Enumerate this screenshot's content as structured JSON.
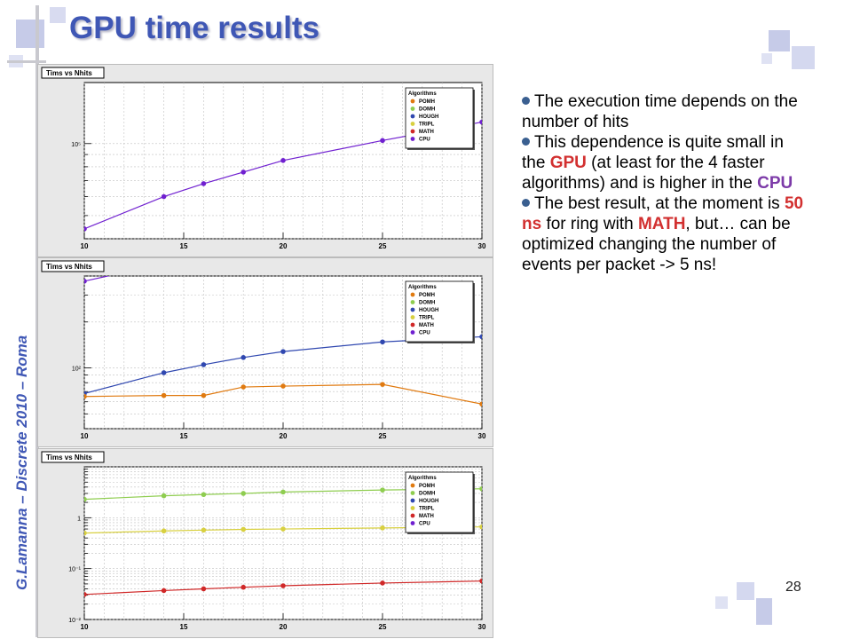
{
  "slide": {
    "title": "GPU time results",
    "side_text": "G.Lamanna – Discrete 2010 – Roma",
    "page_number": "28",
    "accent_color": "#3f57b5"
  },
  "bullets": [
    [
      {
        "t": "The execution time depends on the number of hits",
        "c": ""
      }
    ],
    [
      {
        "t": "This dependence is quite small in the ",
        "c": ""
      },
      {
        "t": "GPU",
        "c": "red"
      },
      {
        "t": " (at least for the 4 faster algorithms) and is higher in the ",
        "c": ""
      },
      {
        "t": "CPU",
        "c": "purple"
      }
    ],
    [
      {
        "t": "The best result, at the moment is ",
        "c": ""
      },
      {
        "t": "50 ns",
        "c": "red"
      },
      {
        "t": " for ring with ",
        "c": ""
      },
      {
        "t": "MATH",
        "c": "red"
      },
      {
        "t": ", but… can be optimized changing the number of events per packet -> 5 ns!",
        "c": ""
      }
    ]
  ],
  "legend": {
    "header": "Algorithms",
    "items": [
      {
        "name": "POMH",
        "color": "#e07a10"
      },
      {
        "name": "DOMH",
        "color": "#8fcd50"
      },
      {
        "name": "HOUGH",
        "color": "#3048b0"
      },
      {
        "name": "TRIPL",
        "color": "#d8d040"
      },
      {
        "name": "MATH",
        "color": "#d02828"
      },
      {
        "name": "CPU",
        "color": "#7020d0"
      }
    ]
  },
  "chart_data": [
    {
      "type": "line",
      "title": "Tims vs Nhits",
      "x_ticks": [
        10,
        15,
        20,
        25,
        30
      ],
      "xlim": [
        10,
        30
      ],
      "y_scale": "log",
      "y_tick_labels": [
        "10⁵"
      ],
      "ylim": [
        40000,
        180000
      ],
      "grid": true,
      "legend_position": "top-right",
      "series": [
        {
          "name": "CPU",
          "color": "#7020d0",
          "x": [
            10,
            14,
            16,
            18,
            20,
            25,
            30
          ],
          "y": [
            44000,
            60000,
            68000,
            76000,
            85000,
            103000,
            123000
          ]
        }
      ]
    },
    {
      "type": "line",
      "title": "Tims vs Nhits",
      "x_ticks": [
        10,
        15,
        20,
        25,
        30
      ],
      "xlim": [
        10,
        30
      ],
      "y_scale": "log",
      "y_tick_labels": [
        "10²"
      ],
      "ylim": [
        40,
        400
      ],
      "grid": true,
      "legend_position": "top-right",
      "series": [
        {
          "name": "CPU",
          "color": "#7020d0",
          "x": [
            10
          ],
          "y": [
            370
          ]
        },
        {
          "name": "HOUGH",
          "color": "#3048b0",
          "x": [
            10,
            14,
            16,
            18,
            20,
            25,
            30
          ],
          "y": [
            68,
            93,
            105,
            117,
            128,
            148,
            160
          ]
        },
        {
          "name": "POMH",
          "color": "#e07a10",
          "x": [
            10,
            14,
            16,
            18,
            20,
            25,
            30
          ],
          "y": [
            65,
            66,
            66,
            75,
            76,
            78,
            58
          ]
        }
      ]
    },
    {
      "type": "line",
      "title": "Tims vs Nhits",
      "x_ticks": [
        10,
        15,
        20,
        25,
        30
      ],
      "xlim": [
        10,
        30
      ],
      "y_scale": "log",
      "y_tick_labels": [
        "10⁻²",
        "10⁻¹",
        "1"
      ],
      "ylim": [
        0.01,
        10
      ],
      "grid": true,
      "legend_position": "top-right",
      "series": [
        {
          "name": "DOMH",
          "color": "#8fcd50",
          "x": [
            10,
            14,
            16,
            18,
            20,
            25,
            30
          ],
          "y": [
            2.3,
            2.7,
            2.85,
            3.0,
            3.2,
            3.5,
            3.7
          ]
        },
        {
          "name": "TRIPL",
          "color": "#d8d040",
          "x": [
            10,
            14,
            16,
            18,
            20,
            25,
            30
          ],
          "y": [
            0.5,
            0.55,
            0.57,
            0.59,
            0.6,
            0.63,
            0.66
          ]
        },
        {
          "name": "MATH",
          "color": "#d02828",
          "x": [
            10,
            14,
            16,
            18,
            20,
            25,
            30
          ],
          "y": [
            0.031,
            0.037,
            0.04,
            0.043,
            0.046,
            0.052,
            0.057
          ]
        }
      ]
    }
  ]
}
